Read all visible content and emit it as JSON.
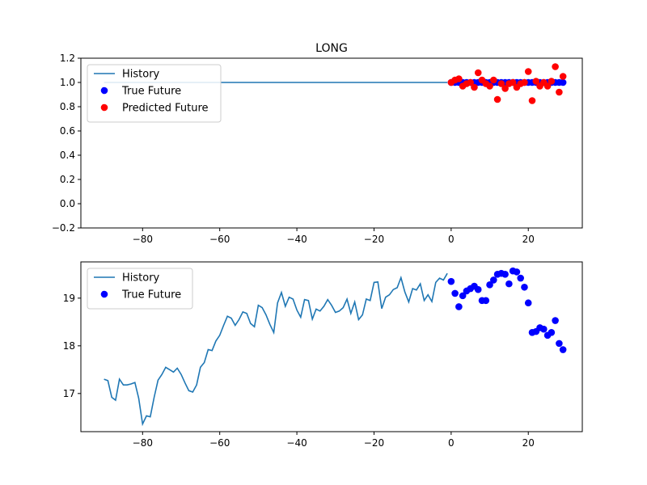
{
  "chart_data": [
    {
      "type": "line",
      "title": "LONG",
      "xlabel": "",
      "ylabel": "",
      "xlim": [
        -96,
        34
      ],
      "ylim": [
        -0.2,
        1.2
      ],
      "xticks": [
        -80,
        -60,
        -40,
        -20,
        0,
        20
      ],
      "xtick_labels": [
        "−80",
        "−60",
        "−40",
        "−20",
        "0",
        "20"
      ],
      "yticks": [
        -0.2,
        0.0,
        0.2,
        0.4,
        0.6,
        0.8,
        1.0,
        1.2
      ],
      "ytick_labels": [
        "−0.2",
        "0.0",
        "0.2",
        "0.4",
        "0.6",
        "0.8",
        "1.0",
        "1.2"
      ],
      "grid": false,
      "legend_position": "top-left",
      "series": [
        {
          "name": "History",
          "kind": "line",
          "color": "#1f77b4",
          "x": [
            -90,
            -1
          ],
          "y": [
            1.0,
            1.0
          ]
        },
        {
          "name": "True Future",
          "kind": "scatter",
          "color": "#0000ff",
          "x": [
            0,
            1,
            2,
            3,
            4,
            5,
            6,
            7,
            8,
            9,
            10,
            11,
            12,
            13,
            14,
            15,
            16,
            17,
            18,
            19,
            20,
            21,
            22,
            23,
            24,
            25,
            26,
            27,
            28,
            29
          ],
          "y": [
            1,
            1,
            1,
            1,
            1,
            1,
            1,
            1,
            1,
            1,
            1,
            1,
            1,
            1,
            1,
            1,
            1,
            1,
            1,
            1,
            1,
            1,
            1,
            1,
            1,
            1,
            1,
            1,
            1,
            1
          ]
        },
        {
          "name": "Predicted Future",
          "kind": "scatter",
          "color": "#ff0000",
          "x": [
            0,
            1,
            2,
            3,
            4,
            5,
            6,
            7,
            8,
            9,
            10,
            11,
            12,
            13,
            14,
            15,
            16,
            17,
            18,
            19,
            20,
            21,
            22,
            23,
            24,
            25,
            26,
            27,
            28,
            29
          ],
          "y": [
            1.0,
            1.02,
            1.03,
            0.97,
            0.99,
            1.0,
            0.96,
            1.08,
            1.02,
            0.99,
            0.97,
            1.02,
            0.86,
            0.99,
            0.95,
            0.99,
            1.0,
            0.96,
            0.99,
            1.0,
            1.09,
            0.85,
            1.01,
            0.97,
            1.0,
            0.97,
            1.01,
            1.13,
            0.92,
            1.05
          ]
        }
      ]
    },
    {
      "type": "line",
      "title": "",
      "xlabel": "",
      "ylabel": "",
      "xlim": [
        -96,
        34
      ],
      "ylim": [
        16.2,
        19.76
      ],
      "xticks": [
        -80,
        -60,
        -40,
        -20,
        0,
        20
      ],
      "xtick_labels": [
        "−80",
        "−60",
        "−40",
        "−20",
        "0",
        "20"
      ],
      "yticks": [
        17,
        18,
        19
      ],
      "ytick_labels": [
        "17",
        "18",
        "19"
      ],
      "grid": false,
      "legend_position": "top-left",
      "series": [
        {
          "name": "History",
          "kind": "line",
          "color": "#1f77b4",
          "x": [
            -90,
            -89,
            -88,
            -87,
            -86,
            -85,
            -84,
            -83,
            -82,
            -81,
            -80,
            -79,
            -78,
            -77,
            -76,
            -75,
            -74,
            -73,
            -72,
            -71,
            -70,
            -69,
            -68,
            -67,
            -66,
            -65,
            -64,
            -63,
            -62,
            -61,
            -60,
            -59,
            -58,
            -57,
            -56,
            -55,
            -54,
            -53,
            -52,
            -51,
            -50,
            -49,
            -48,
            -47,
            -46,
            -45,
            -44,
            -43,
            -42,
            -41,
            -40,
            -39,
            -38,
            -37,
            -36,
            -35,
            -34,
            -33,
            -32,
            -31,
            -30,
            -29,
            -28,
            -27,
            -26,
            -25,
            -24,
            -23,
            -22,
            -21,
            -20,
            -19,
            -18,
            -17,
            -16,
            -15,
            -14,
            -13,
            -12,
            -11,
            -10,
            -9,
            -8,
            -7,
            -6,
            -5,
            -4,
            -3,
            -2,
            -1
          ],
          "y": [
            17.3,
            17.27,
            16.92,
            16.86,
            17.3,
            17.18,
            17.18,
            17.2,
            17.23,
            16.9,
            16.36,
            16.53,
            16.51,
            16.92,
            17.28,
            17.4,
            17.55,
            17.5,
            17.45,
            17.53,
            17.4,
            17.22,
            17.06,
            17.03,
            17.18,
            17.55,
            17.65,
            17.92,
            17.9,
            18.1,
            18.22,
            18.43,
            18.62,
            18.58,
            18.43,
            18.55,
            18.71,
            18.68,
            18.47,
            18.4,
            18.85,
            18.8,
            18.65,
            18.45,
            18.28,
            18.9,
            19.12,
            18.83,
            19.02,
            18.98,
            18.75,
            18.6,
            18.97,
            18.95,
            18.56,
            18.77,
            18.73,
            18.83,
            18.97,
            18.85,
            18.7,
            18.73,
            18.8,
            18.98,
            18.68,
            18.92,
            18.55,
            18.65,
            18.98,
            18.95,
            19.33,
            19.34,
            18.78,
            19.02,
            19.07,
            19.18,
            19.22,
            19.43,
            19.13,
            18.92,
            19.2,
            19.17,
            19.3,
            18.95,
            19.07,
            18.93,
            19.33,
            19.42,
            19.38,
            19.52
          ]
        },
        {
          "name": "True Future",
          "kind": "scatter",
          "color": "#0000ff",
          "x": [
            0,
            1,
            2,
            3,
            4,
            5,
            6,
            7,
            8,
            9,
            10,
            11,
            12,
            13,
            14,
            15,
            16,
            17,
            18,
            19,
            20,
            21,
            22,
            23,
            24,
            25,
            26,
            27,
            28,
            29
          ],
          "y": [
            19.35,
            19.1,
            18.82,
            19.05,
            19.15,
            19.2,
            19.25,
            19.18,
            18.95,
            18.95,
            19.28,
            19.38,
            19.5,
            19.52,
            19.5,
            19.3,
            19.57,
            19.55,
            19.42,
            19.23,
            18.9,
            18.28,
            18.3,
            18.38,
            18.35,
            18.22,
            18.28,
            18.53,
            18.05,
            17.92
          ]
        }
      ]
    }
  ]
}
